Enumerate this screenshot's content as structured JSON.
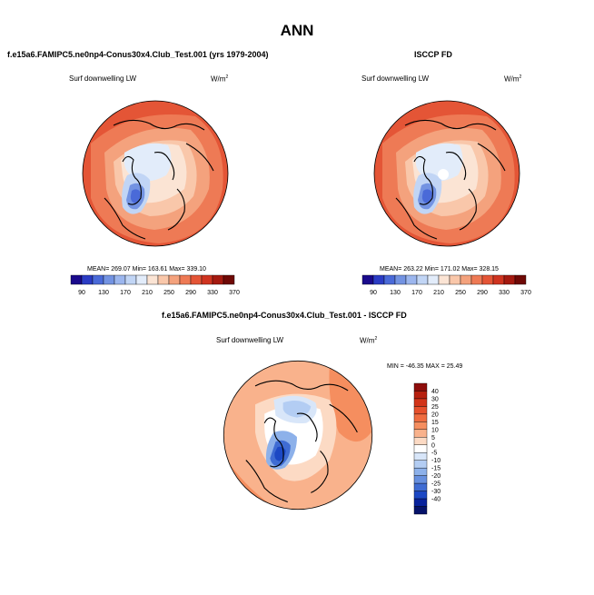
{
  "page_title": "ANN",
  "chart_data": [
    {
      "type": "heatmap",
      "title": "f.e15a6.FAMIPC5.ne0np4-Conus30x4.Club_Test.001 (yrs 1979-2004)",
      "variable": "Surf downwelling LW",
      "units_base": "W/m",
      "units_exp": "2",
      "projection": "polar-stereographic-north",
      "stats": {
        "mean": "269.07",
        "min": "163.61",
        "max": "339.10"
      },
      "stats_text": "MEAN= 269.07   Min= 163.61   Max= 339.10",
      "colorbar_levels": [
        "90",
        "130",
        "170",
        "210",
        "250",
        "290",
        "330",
        "370"
      ],
      "colorbar_colors": [
        "#1a0a8c",
        "#2b3cc4",
        "#4a6ad8",
        "#7393e2",
        "#9cb6ee",
        "#c1d5f5",
        "#e2ecfa",
        "#fbe4d4",
        "#f9c7aa",
        "#f4a27d",
        "#ee7a55",
        "#e45536",
        "#cf3420",
        "#a51a10",
        "#6f0906"
      ],
      "colorbar_orientation": "horizontal"
    },
    {
      "type": "heatmap",
      "title": "ISCCP FD",
      "variable": "Surf downwelling LW",
      "units_base": "W/m",
      "units_exp": "2",
      "projection": "polar-stereographic-north",
      "stats": {
        "mean": "263.22",
        "min": "171.02",
        "max": "328.15"
      },
      "stats_text": "MEAN= 263.22   Min= 171.02   Max= 328.15",
      "colorbar_levels": [
        "90",
        "130",
        "170",
        "210",
        "250",
        "290",
        "330",
        "370"
      ],
      "colorbar_colors": [
        "#1a0a8c",
        "#2b3cc4",
        "#4a6ad8",
        "#7393e2",
        "#9cb6ee",
        "#c1d5f5",
        "#e2ecfa",
        "#fbe4d4",
        "#f9c7aa",
        "#f4a27d",
        "#ee7a55",
        "#e45536",
        "#cf3420",
        "#a51a10",
        "#6f0906"
      ],
      "colorbar_orientation": "horizontal"
    },
    {
      "type": "heatmap",
      "title": "f.e15a6.FAMIPC5.ne0np4-Conus30x4.Club_Test.001 - ISCCP FD",
      "variable": "Surf downwelling LW",
      "units_base": "W/m",
      "units_exp": "2",
      "projection": "polar-stereographic-north",
      "stats": {
        "min": "-46.35",
        "max": "25.49"
      },
      "stats_text": "MIN = -46.35 MAX =  25.49",
      "colorbar_levels": [
        "40",
        "30",
        "25",
        "20",
        "15",
        "10",
        "5",
        "0",
        "-5",
        "-10",
        "-15",
        "-20",
        "-25",
        "-30",
        "-40"
      ],
      "colorbar_colors": [
        "#8e0d0b",
        "#b7200f",
        "#d23419",
        "#e6502c",
        "#ef6c40",
        "#f58e5f",
        "#f9b28c",
        "#fcdac4",
        "#ffffff",
        "#d8e6f9",
        "#b3cdf3",
        "#8db1ea",
        "#6790df",
        "#3f6cd3",
        "#1c48c4",
        "#08229c",
        "#06136a"
      ],
      "colorbar_orientation": "vertical"
    }
  ]
}
